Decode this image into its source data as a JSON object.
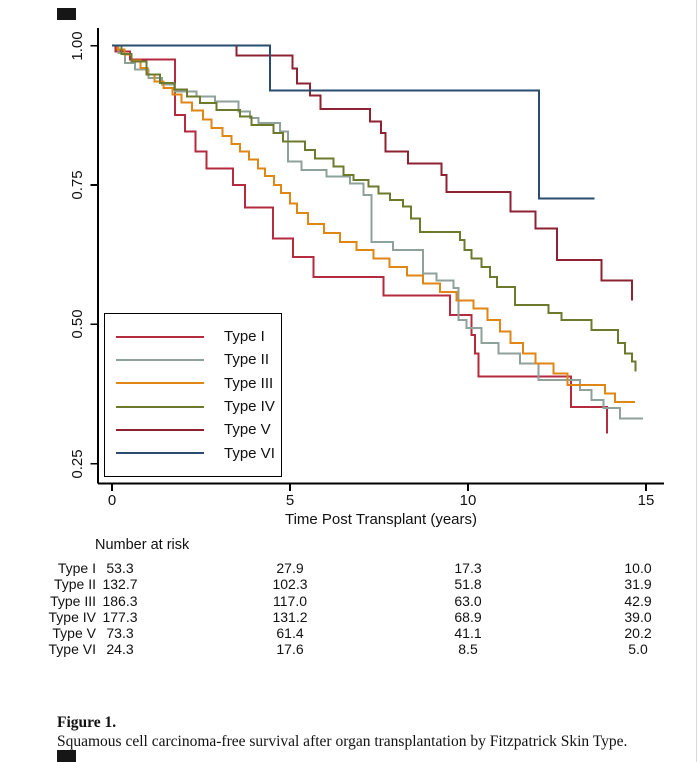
{
  "figure": {
    "label": "Figure 1.",
    "caption": "Squamous cell carcinoma-free survival after organ transplantation by Fitzpatrick Skin Type."
  },
  "chart_data": {
    "type": "line",
    "subtype": "kaplan-meier-step",
    "title": "",
    "xlabel": "Time Post Transplant (years)",
    "ylabel": "",
    "xlim": [
      0,
      15.5
    ],
    "ylim": [
      0.22,
      1.02
    ],
    "grid": false,
    "legend_position": "inside-lower-left",
    "xticks": [
      0,
      5,
      10,
      15
    ],
    "xtick_labels": [
      "0",
      "5",
      "10",
      "15"
    ],
    "ytick_values": [
      1.0,
      0.75,
      0.5,
      0.25
    ],
    "ytick_labels": [
      "1.00",
      "0.75",
      "0.50",
      "0.25"
    ],
    "series": [
      {
        "name": "Type I",
        "color": "#b52a3e",
        "end": 13.9,
        "points": [
          [
            0,
            1.0
          ],
          [
            0.1,
            0.99
          ],
          [
            0.5,
            0.975
          ],
          [
            1.77,
            0.876
          ],
          [
            2.05,
            0.846
          ],
          [
            2.35,
            0.81
          ],
          [
            2.65,
            0.78
          ],
          [
            3.4,
            0.75
          ],
          [
            3.73,
            0.71
          ],
          [
            4.52,
            0.654
          ],
          [
            5.08,
            0.621
          ],
          [
            5.66,
            0.585
          ],
          [
            7.62,
            0.552
          ],
          [
            9.49,
            0.517
          ],
          [
            10.1,
            0.481
          ],
          [
            10.2,
            0.448
          ],
          [
            10.3,
            0.406
          ],
          [
            12.9,
            0.352
          ],
          [
            13.9,
            0.304
          ]
        ]
      },
      {
        "name": "Type II",
        "color": "#8fa29a",
        "end": 14.92,
        "points": [
          [
            0,
            1.0
          ],
          [
            0.18,
            0.987
          ],
          [
            0.37,
            0.969
          ],
          [
            0.65,
            0.957
          ],
          [
            1.02,
            0.942
          ],
          [
            1.4,
            0.93
          ],
          [
            1.77,
            0.918
          ],
          [
            2.38,
            0.909
          ],
          [
            2.89,
            0.9
          ],
          [
            3.55,
            0.882
          ],
          [
            3.88,
            0.87
          ],
          [
            4.11,
            0.861
          ],
          [
            4.72,
            0.846
          ],
          [
            4.95,
            0.792
          ],
          [
            5.33,
            0.777
          ],
          [
            6.03,
            0.765
          ],
          [
            6.69,
            0.753
          ],
          [
            7.06,
            0.732
          ],
          [
            7.29,
            0.648
          ],
          [
            7.9,
            0.633
          ],
          [
            8.74,
            0.591
          ],
          [
            9.12,
            0.579
          ],
          [
            9.59,
            0.565
          ],
          [
            9.73,
            0.508
          ],
          [
            9.96,
            0.493
          ],
          [
            10.38,
            0.466
          ],
          [
            10.85,
            0.448
          ],
          [
            11.46,
            0.43
          ],
          [
            11.98,
            0.4
          ],
          [
            13.15,
            0.382
          ],
          [
            13.47,
            0.364
          ],
          [
            13.8,
            0.35
          ],
          [
            14.27,
            0.331
          ]
        ]
      },
      {
        "name": "Type III",
        "color": "#e08614",
        "end": 14.69,
        "points": [
          [
            0,
            1.0
          ],
          [
            0.15,
            0.993
          ],
          [
            0.35,
            0.984
          ],
          [
            0.55,
            0.973
          ],
          [
            0.8,
            0.96
          ],
          [
            1.0,
            0.948
          ],
          [
            1.2,
            0.936
          ],
          [
            1.45,
            0.924
          ],
          [
            1.7,
            0.912
          ],
          [
            1.95,
            0.898
          ],
          [
            2.25,
            0.884
          ],
          [
            2.55,
            0.868
          ],
          [
            2.8,
            0.852
          ],
          [
            3.1,
            0.838
          ],
          [
            3.35,
            0.824
          ],
          [
            3.6,
            0.81
          ],
          [
            3.85,
            0.796
          ],
          [
            4.1,
            0.78
          ],
          [
            4.3,
            0.766
          ],
          [
            4.55,
            0.75
          ],
          [
            4.75,
            0.736
          ],
          [
            5.0,
            0.717
          ],
          [
            5.2,
            0.7
          ],
          [
            5.5,
            0.68
          ],
          [
            5.95,
            0.664
          ],
          [
            6.4,
            0.648
          ],
          [
            6.87,
            0.633
          ],
          [
            7.34,
            0.618
          ],
          [
            7.8,
            0.603
          ],
          [
            8.28,
            0.588
          ],
          [
            8.74,
            0.573
          ],
          [
            9.21,
            0.558
          ],
          [
            9.68,
            0.543
          ],
          [
            10.15,
            0.528
          ],
          [
            10.55,
            0.508
          ],
          [
            10.9,
            0.487
          ],
          [
            11.2,
            0.466
          ],
          [
            11.55,
            0.448
          ],
          [
            11.9,
            0.43
          ],
          [
            12.4,
            0.412
          ],
          [
            12.8,
            0.391
          ],
          [
            13.85,
            0.376
          ],
          [
            14.13,
            0.361
          ]
        ]
      },
      {
        "name": "Type IV",
        "color": "#6b7a2d",
        "end": 14.7,
        "points": [
          [
            0,
            1.0
          ],
          [
            0.27,
            0.985
          ],
          [
            0.55,
            0.972
          ],
          [
            0.97,
            0.948
          ],
          [
            1.35,
            0.933
          ],
          [
            1.75,
            0.921
          ],
          [
            2.1,
            0.909
          ],
          [
            2.47,
            0.897
          ],
          [
            2.94,
            0.885
          ],
          [
            3.6,
            0.873
          ],
          [
            3.92,
            0.858
          ],
          [
            4.53,
            0.843
          ],
          [
            4.81,
            0.828
          ],
          [
            5.42,
            0.813
          ],
          [
            5.7,
            0.798
          ],
          [
            6.22,
            0.783
          ],
          [
            6.5,
            0.768
          ],
          [
            6.78,
            0.759
          ],
          [
            7.2,
            0.747
          ],
          [
            7.48,
            0.735
          ],
          [
            7.81,
            0.723
          ],
          [
            8.18,
            0.711
          ],
          [
            8.4,
            0.69
          ],
          [
            8.65,
            0.666
          ],
          [
            9.78,
            0.651
          ],
          [
            9.9,
            0.633
          ],
          [
            10.1,
            0.618
          ],
          [
            10.38,
            0.603
          ],
          [
            10.62,
            0.585
          ],
          [
            10.81,
            0.567
          ],
          [
            11.32,
            0.535
          ],
          [
            12.26,
            0.52
          ],
          [
            12.63,
            0.508
          ],
          [
            13.47,
            0.49
          ],
          [
            14.22,
            0.466
          ],
          [
            14.41,
            0.448
          ],
          [
            14.6,
            0.433
          ],
          [
            14.7,
            0.415
          ]
        ]
      },
      {
        "name": "Type V",
        "color": "#8e2233",
        "end": 14.6,
        "points": [
          [
            0,
            1.0
          ],
          [
            3.5,
            0.982
          ],
          [
            5.07,
            0.959
          ],
          [
            5.2,
            0.932
          ],
          [
            5.56,
            0.911
          ],
          [
            5.85,
            0.886
          ],
          [
            7.25,
            0.864
          ],
          [
            7.55,
            0.843
          ],
          [
            7.68,
            0.81
          ],
          [
            8.32,
            0.789
          ],
          [
            9.26,
            0.768
          ],
          [
            9.4,
            0.737
          ],
          [
            11.2,
            0.702
          ],
          [
            11.9,
            0.672
          ],
          [
            12.5,
            0.615
          ],
          [
            13.75,
            0.579
          ],
          [
            14.6,
            0.543
          ]
        ]
      },
      {
        "name": "Type VI",
        "color": "#2a4d6e",
        "end": 13.55,
        "points": [
          [
            0,
            1.0
          ],
          [
            4.44,
            0.92
          ],
          [
            12.0,
            0.726
          ]
        ]
      }
    ]
  },
  "risk_table": {
    "title": "Number at risk",
    "columns": [
      0,
      5,
      10,
      15
    ],
    "rows": [
      {
        "label": "Type I",
        "values": [
          "53.3",
          "27.9",
          "17.3",
          "10.0"
        ]
      },
      {
        "label": "Type II",
        "values": [
          "132.7",
          "102.3",
          "51.8",
          "31.9"
        ]
      },
      {
        "label": "Type III",
        "values": [
          "186.3",
          "117.0",
          "63.0",
          "42.9"
        ]
      },
      {
        "label": "Type IV",
        "values": [
          "177.3",
          "131.2",
          "68.9",
          "39.0"
        ]
      },
      {
        "label": "Type V",
        "values": [
          "73.3",
          "61.4",
          "41.1",
          "20.2"
        ]
      },
      {
        "label": "Type VI",
        "values": [
          "24.3",
          "17.6",
          "8.5",
          "5.0"
        ]
      }
    ]
  }
}
